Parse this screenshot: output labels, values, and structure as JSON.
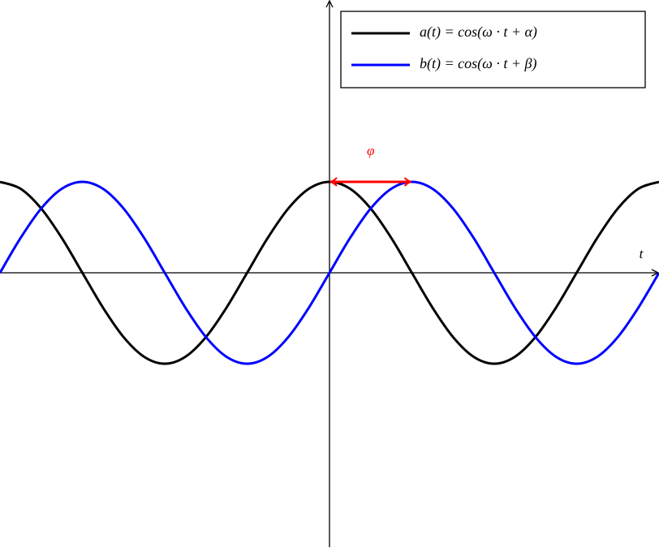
{
  "chart_data": {
    "type": "line",
    "x_label": "t",
    "x": [
      -4,
      -3.75,
      -3.5,
      -3.25,
      -3,
      -2.75,
      -2.5,
      -2.25,
      -2,
      -1.75,
      -1.5,
      -1.25,
      -1,
      -0.75,
      -0.5,
      -0.25,
      0,
      0.25,
      0.5,
      0.75,
      1,
      1.25,
      1.5,
      1.75,
      2,
      2.25,
      2.5,
      2.75,
      3,
      3.25,
      3.5,
      3.75,
      4
    ],
    "series": [
      {
        "name": "a(t) = cos(ω · t + α)",
        "color": "#000000",
        "values": [
          1,
          0.924,
          0.707,
          0.383,
          0,
          -0.383,
          -0.707,
          -0.924,
          -1,
          -0.924,
          -0.707,
          -0.383,
          0,
          0.383,
          0.707,
          0.924,
          1,
          0.924,
          0.707,
          0.383,
          0,
          -0.383,
          -0.707,
          -0.924,
          -1,
          -0.924,
          -0.707,
          -0.383,
          0,
          0.383,
          0.707,
          0.924,
          1
        ]
      },
      {
        "name": "b(t) = cos(ω · t + β)",
        "color": "#0000ff",
        "values": [
          0,
          0.383,
          0.707,
          0.924,
          1,
          0.924,
          0.707,
          0.383,
          0,
          -0.383,
          -0.707,
          -0.924,
          -1,
          -0.924,
          -0.707,
          -0.383,
          0,
          0.383,
          0.707,
          0.924,
          1,
          0.924,
          0.707,
          0.383,
          0,
          -0.383,
          -0.707,
          -0.924,
          -1,
          -0.924,
          -0.707,
          -0.383,
          0
        ]
      }
    ],
    "xlim": [
      -4,
      4
    ],
    "ylim": [
      -3,
      3
    ],
    "grid": false,
    "legend": "upper right",
    "annotation": {
      "text": "φ",
      "x_start": 0,
      "x_end": 1,
      "y": 1,
      "color": "#ff0000"
    }
  }
}
